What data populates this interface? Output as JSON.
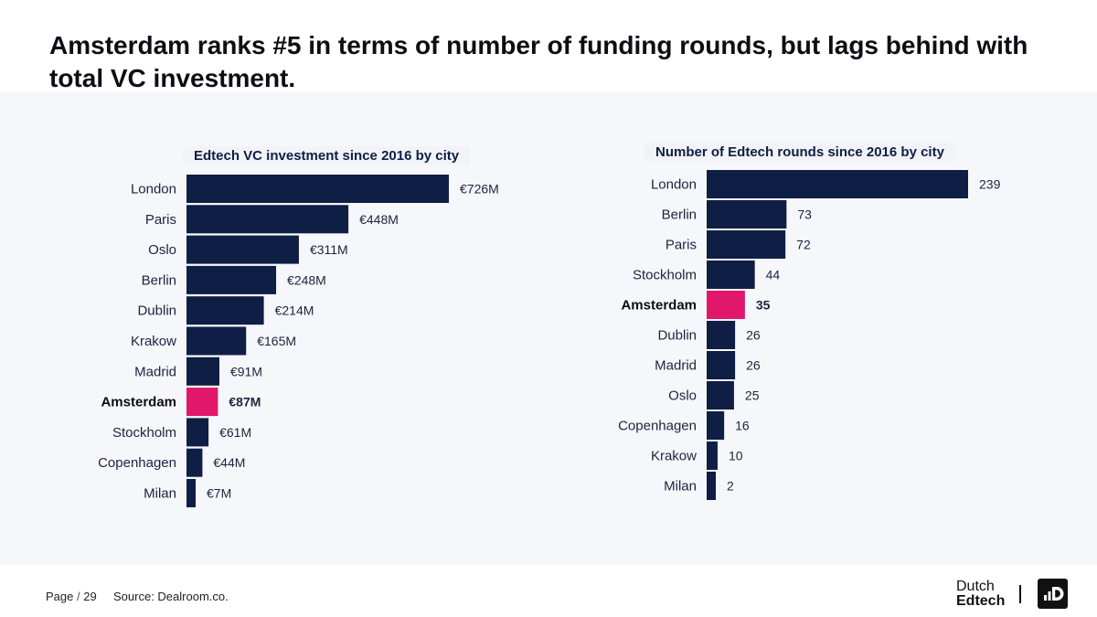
{
  "headline": "Amsterdam ranks #5 in terms of number of funding rounds, but lags behind with total VC investment.",
  "colors": {
    "bar": "#0f1e45",
    "highlight": "#e0176b",
    "panel": "#f6f7fa"
  },
  "footer": {
    "page_label": "Page",
    "page_number": "29",
    "source": "Source: Dealroom.co."
  },
  "logo": {
    "line1": "Dutch",
    "line2": "Edtech",
    "icon": "dutch-edtech-logo-icon"
  },
  "chart_data": [
    {
      "type": "bar",
      "orientation": "horizontal",
      "title": "Edtech VC investment since 2016 by city",
      "highlight": "Amsterdam",
      "categories": [
        "London",
        "Paris",
        "Oslo",
        "Berlin",
        "Dublin",
        "Krakow",
        "Madrid",
        "Amsterdam",
        "Stockholm",
        "Copenhagen",
        "Milan"
      ],
      "values": [
        726,
        448,
        311,
        248,
        214,
        165,
        91,
        87,
        61,
        44,
        7
      ],
      "labels": [
        "€726M",
        "€448M",
        "€311M",
        "€248M",
        "€214M",
        "€165M",
        "€91M",
        "€87M",
        "€61M",
        "€44M",
        "€7M"
      ],
      "unit": "€M",
      "xlim": [
        0,
        726
      ]
    },
    {
      "type": "bar",
      "orientation": "horizontal",
      "title": "Number of Edtech rounds since 2016 by city",
      "highlight": "Amsterdam",
      "categories": [
        "London",
        "Berlin",
        "Paris",
        "Stockholm",
        "Amsterdam",
        "Dublin",
        "Madrid",
        "Oslo",
        "Copenhagen",
        "Krakow",
        "Milan"
      ],
      "values": [
        239,
        73,
        72,
        44,
        35,
        26,
        26,
        25,
        16,
        10,
        2
      ],
      "labels": [
        "239",
        "73",
        "72",
        "44",
        "35",
        "26",
        "26",
        "25",
        "16",
        "10",
        "2"
      ],
      "xlim": [
        0,
        239
      ]
    }
  ]
}
